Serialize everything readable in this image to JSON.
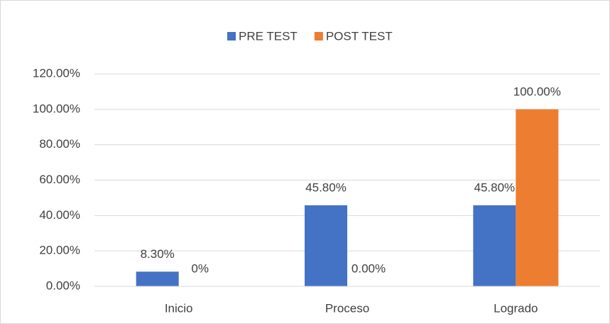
{
  "chart_data": {
    "type": "bar",
    "categories": [
      "Inicio",
      "Proceso",
      "Logrado"
    ],
    "series": [
      {
        "name": "PRE TEST",
        "color": "#4472c4",
        "values": [
          8.3,
          45.8,
          45.8
        ],
        "value_labels": [
          "8.30%",
          "45.80%",
          "45.80%"
        ]
      },
      {
        "name": "POST TEST",
        "color": "#ed7d31",
        "values": [
          0,
          0,
          100
        ],
        "value_labels": [
          "0%",
          "0.00%",
          "100.00%"
        ]
      }
    ],
    "ylim": [
      0,
      120
    ],
    "yticks": [
      {
        "value": 0,
        "label": "0.00%"
      },
      {
        "value": 20,
        "label": "20.00%"
      },
      {
        "value": 40,
        "label": "40.00%"
      },
      {
        "value": 60,
        "label": "60.00%"
      },
      {
        "value": 80,
        "label": "80.00%"
      },
      {
        "value": 100,
        "label": "100.00%"
      },
      {
        "value": 120,
        "label": "120.00%"
      }
    ],
    "grid": true,
    "legend": "top"
  }
}
